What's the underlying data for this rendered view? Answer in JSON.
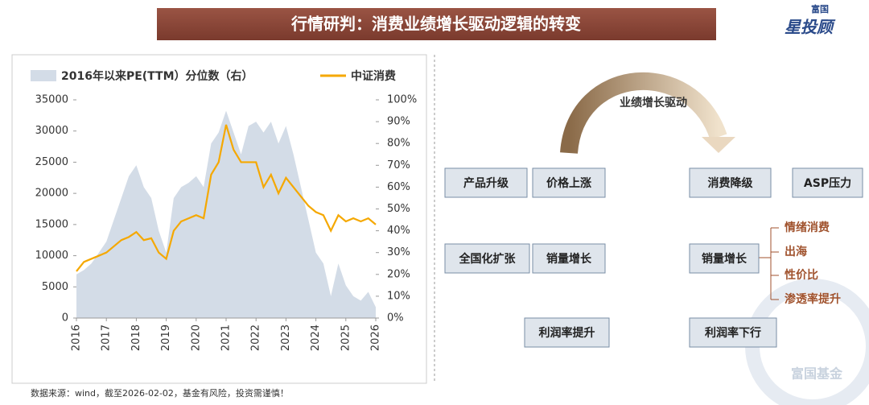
{
  "header": {
    "title": "行情研判：消费业绩增长驱动逻辑的转变",
    "logo_top": "富国",
    "logo_main": "星投顾"
  },
  "chart_data": {
    "type": "line",
    "x": [
      2016,
      2016.25,
      2016.5,
      2016.75,
      2017,
      2017.25,
      2017.5,
      2017.75,
      2018,
      2018.25,
      2018.5,
      2018.75,
      2019,
      2019.25,
      2019.5,
      2019.75,
      2020,
      2020.25,
      2020.5,
      2020.75,
      2021,
      2021.25,
      2021.5,
      2021.75,
      2022,
      2022.25,
      2022.5,
      2022.75,
      2023,
      2023.25,
      2023.5,
      2023.75,
      2024,
      2024.25,
      2024.5,
      2024.75,
      2025,
      2025.25,
      2025.5,
      2025.75,
      2026
    ],
    "series": [
      {
        "name": "2016年以来PE(TTM）分位数（右）",
        "color": "#d3dce7",
        "axis": "y2",
        "kind": "area",
        "values": [
          20,
          22,
          25,
          30,
          35,
          45,
          55,
          65,
          70,
          60,
          55,
          40,
          30,
          55,
          60,
          62,
          65,
          60,
          80,
          85,
          95,
          85,
          75,
          88,
          90,
          85,
          90,
          80,
          88,
          75,
          60,
          45,
          30,
          25,
          10,
          25,
          15,
          10,
          8,
          12,
          5
        ]
      },
      {
        "name": "中证消费",
        "color": "#f5a800",
        "kind": "line",
        "values": [
          7500,
          9000,
          9500,
          10000,
          10500,
          11500,
          12500,
          13000,
          13800,
          12500,
          12800,
          10500,
          9500,
          14000,
          15500,
          16000,
          16500,
          16000,
          23000,
          25000,
          31000,
          27000,
          25000,
          25000,
          25000,
          21000,
          23000,
          20000,
          22500,
          21000,
          19500,
          18000,
          17000,
          16500,
          14000,
          16500,
          15500,
          16000,
          15500,
          16000,
          15000
        ]
      }
    ],
    "xlim": [
      2016,
      2026
    ],
    "xticks": [
      2016,
      2017,
      2018,
      2019,
      2020,
      2021,
      2022,
      2023,
      2024,
      2025,
      2026
    ],
    "ylim": [
      0,
      35000
    ],
    "yticks": [
      0,
      5000,
      10000,
      15000,
      20000,
      25000,
      30000,
      35000
    ],
    "y2lim": [
      0,
      100
    ],
    "y2ticks": [
      {
        "value": 0,
        "label": "0%"
      },
      {
        "value": 10,
        "label": "10%"
      },
      {
        "value": 20,
        "label": "20%"
      },
      {
        "value": 30,
        "label": "30%"
      },
      {
        "value": 40,
        "label": "40%"
      },
      {
        "value": 50,
        "label": "50%"
      },
      {
        "value": 60,
        "label": "60%"
      },
      {
        "value": 70,
        "label": "70%"
      },
      {
        "value": 80,
        "label": "80%"
      },
      {
        "value": 90,
        "label": "90%"
      },
      {
        "value": 100,
        "label": "100%"
      }
    ]
  },
  "diagram": {
    "arc_label": "业绩增长驱动",
    "nodes": [
      {
        "label": "产品升级"
      },
      {
        "label": "价格上涨"
      },
      {
        "label": "消费降级"
      },
      {
        "label": "ASP压力"
      },
      {
        "label": "全国化扩张"
      },
      {
        "label": "销量增长"
      },
      {
        "label": "销量增长"
      },
      {
        "label": "利润率提升"
      },
      {
        "label": "利润率下行"
      }
    ],
    "drivers": [
      "情绪消费",
      "出海",
      "性价比",
      "渗透率提升"
    ]
  },
  "footer": {
    "source": "数据来源：wind，截至2026-02-02，基金有风险，投资需谨慎！",
    "watermark": "富国基金"
  }
}
